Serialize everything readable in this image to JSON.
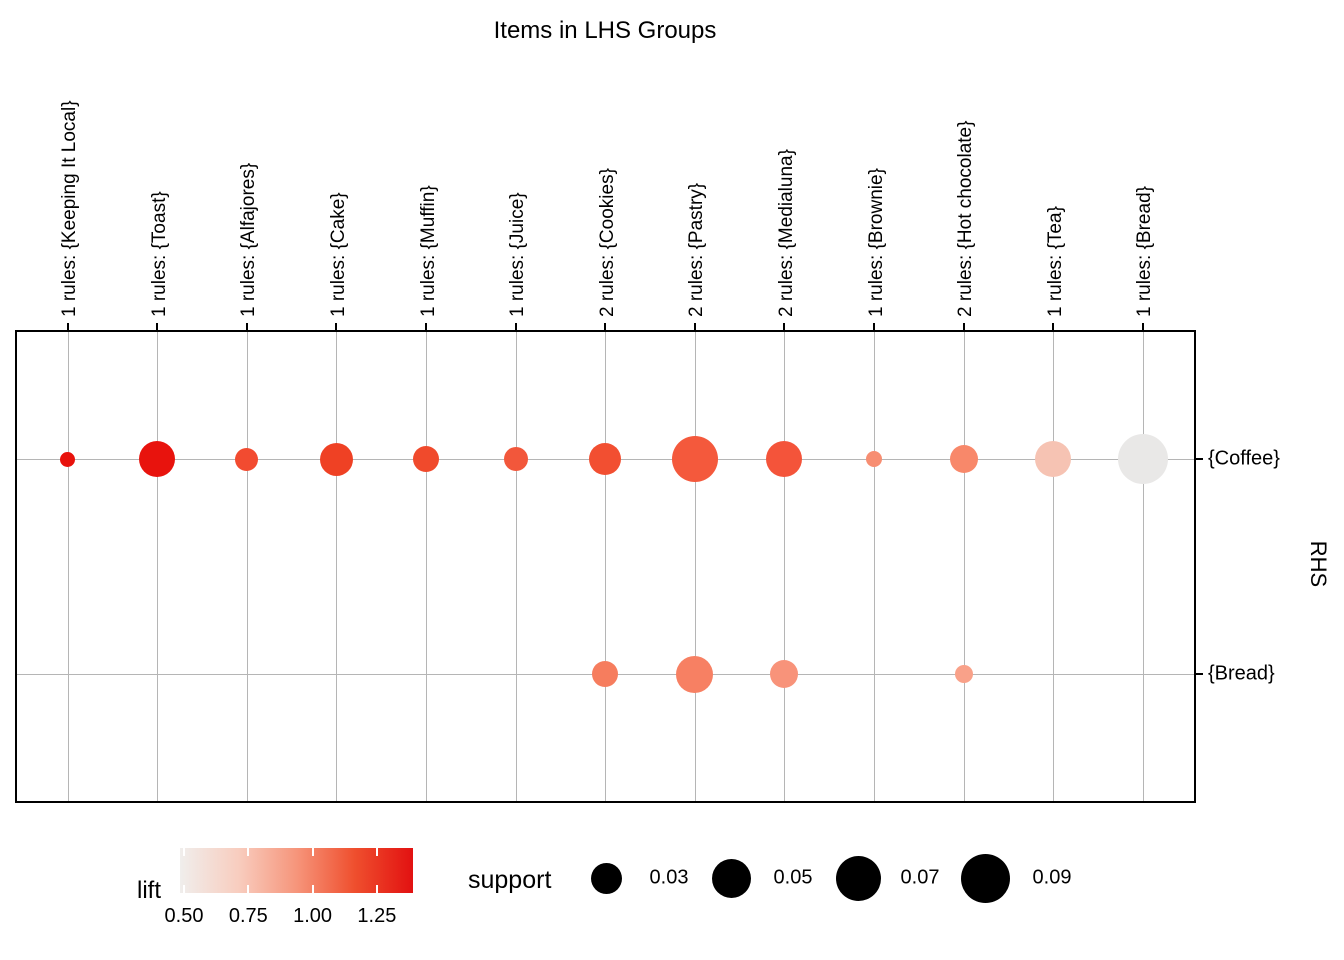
{
  "chart_data": {
    "type": "scatter",
    "variant": "grouped-matrix-bubble-plot",
    "title": "Items in LHS Groups",
    "y_axis_right_label": "RHS",
    "grid": true,
    "encoding": {
      "size": "support",
      "color": "lift"
    },
    "columns": [
      "1 rules: {Keeping It Local}",
      "1 rules: {Toast}",
      "1 rules: {Alfajores}",
      "1 rules: {Cake}",
      "1 rules: {Muffin}",
      "1 rules: {Juice}",
      "2 rules: {Cookies}",
      "2 rules: {Pastry}",
      "2 rules: {Medialuna}",
      "1 rules: {Brownie}",
      "2 rules: {Hot chocolate}",
      "1 rules: {Tea}",
      "1 rules: {Bread}"
    ],
    "rows": [
      "{Coffee}",
      "{Bread}"
    ],
    "points": [
      {
        "lhs": "1 rules: {Keeping It Local}",
        "rhs": "{Coffee}",
        "support_approx": 0.007,
        "lift_approx": 1.4,
        "radius_px": 7.5,
        "color": "#e8120c"
      },
      {
        "lhs": "1 rules: {Toast}",
        "rhs": "{Coffee}",
        "support_approx": 0.04,
        "lift_approx": 1.4,
        "radius_px": 18,
        "color": "#e8130d"
      },
      {
        "lhs": "1 rules: {Alfajores}",
        "rhs": "{Coffee}",
        "support_approx": 0.017,
        "lift_approx": 1.15,
        "radius_px": 11.5,
        "color": "#f24b30"
      },
      {
        "lhs": "1 rules: {Cake}",
        "rhs": "{Coffee}",
        "support_approx": 0.033,
        "lift_approx": 1.2,
        "radius_px": 16.5,
        "color": "#ef4124"
      },
      {
        "lhs": "1 rules: {Muffin}",
        "rhs": "{Coffee}",
        "support_approx": 0.021,
        "lift_approx": 1.17,
        "radius_px": 13,
        "color": "#f04a2c"
      },
      {
        "lhs": "1 rules: {Juice}",
        "rhs": "{Coffee}",
        "support_approx": 0.018,
        "lift_approx": 1.1,
        "radius_px": 12,
        "color": "#f2573b"
      },
      {
        "lhs": "2 rules: {Cookies}",
        "rhs": "{Coffee}",
        "support_approx": 0.031,
        "lift_approx": 1.14,
        "radius_px": 16,
        "color": "#f24f31"
      },
      {
        "lhs": "2 rules: {Pastry}",
        "rhs": "{Coffee}",
        "support_approx": 0.066,
        "lift_approx": 1.09,
        "radius_px": 23,
        "color": "#f4593c"
      },
      {
        "lhs": "2 rules: {Medialuna}",
        "rhs": "{Coffee}",
        "support_approx": 0.04,
        "lift_approx": 1.12,
        "radius_px": 18,
        "color": "#f4543a"
      },
      {
        "lhs": "1 rules: {Brownie}",
        "rhs": "{Coffee}",
        "support_approx": 0.008,
        "lift_approx": 0.97,
        "radius_px": 8,
        "color": "#f78e72"
      },
      {
        "lhs": "2 rules: {Hot chocolate}",
        "rhs": "{Coffee}",
        "support_approx": 0.024,
        "lift_approx": 0.99,
        "radius_px": 14,
        "color": "#f8886a"
      },
      {
        "lhs": "1 rules: {Tea}",
        "rhs": "{Coffee}",
        "support_approx": 0.04,
        "lift_approx": 0.78,
        "radius_px": 18,
        "color": "#f6c3b3"
      },
      {
        "lhs": "1 rules: {Bread}",
        "rhs": "{Coffee}",
        "support_approx": 0.078,
        "lift_approx": 0.5,
        "radius_px": 25,
        "color": "#e9e8e7"
      },
      {
        "lhs": "2 rules: {Cookies}",
        "rhs": "{Bread}",
        "support_approx": 0.021,
        "lift_approx": 1.03,
        "radius_px": 13,
        "color": "#f67d5e"
      },
      {
        "lhs": "2 rules: {Pastry}",
        "rhs": "{Bread}",
        "support_approx": 0.043,
        "lift_approx": 1.01,
        "radius_px": 18.5,
        "color": "#f78063"
      },
      {
        "lhs": "2 rules: {Medialuna}",
        "rhs": "{Bread}",
        "support_approx": 0.025,
        "lift_approx": 0.96,
        "radius_px": 14,
        "color": "#f8937a"
      },
      {
        "lhs": "2 rules: {Hot chocolate}",
        "rhs": "{Bread}",
        "support_approx": 0.01,
        "lift_approx": 0.92,
        "radius_px": 9,
        "color": "#f9a189"
      }
    ],
    "legend": {
      "lift": {
        "label": "lift",
        "ticks": [
          "0.50",
          "0.75",
          "1.00",
          "1.25"
        ],
        "gradient": [
          "#f0eeec",
          "#f8cdbf",
          "#f6957b",
          "#ef4f2e",
          "#e21111"
        ]
      },
      "support": {
        "label": "support",
        "color": "#000000",
        "items": [
          {
            "label": "0.03",
            "radius_px": 15.5
          },
          {
            "label": "0.05",
            "radius_px": 19.5
          },
          {
            "label": "0.07",
            "radius_px": 22.5
          },
          {
            "label": "0.09",
            "radius_px": 24.5
          }
        ]
      }
    },
    "style": {
      "gridline_color": "#b5b5b5",
      "border_color": "#000000",
      "background": "#ffffff"
    }
  }
}
